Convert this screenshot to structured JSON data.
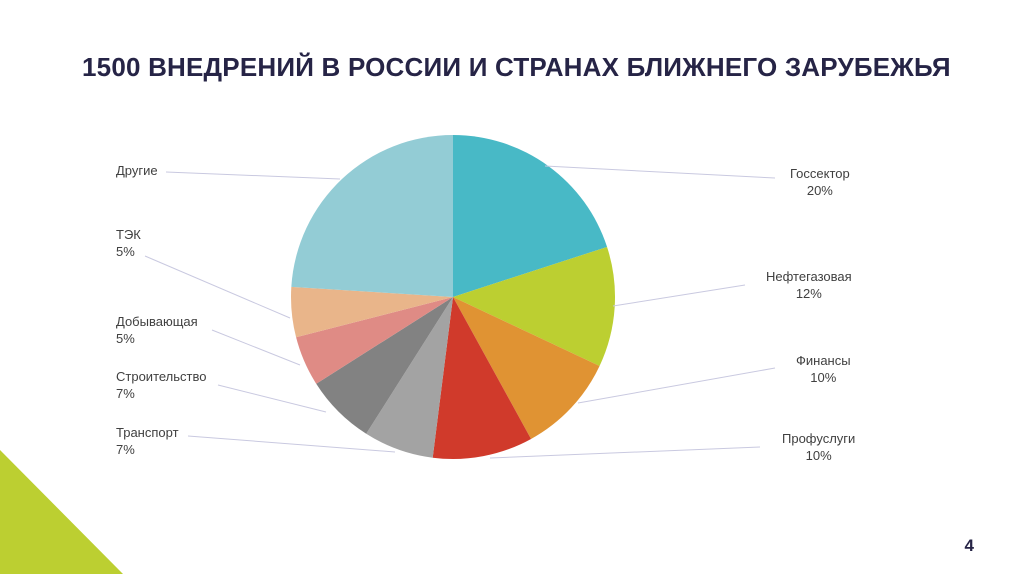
{
  "slide": {
    "title": "1500 ВНЕДРЕНИЙ В РОССИИ И СТРАНАХ БЛИЖНЕГО ЗАРУБЕЖЬЯ",
    "page_number": "4",
    "accent_color": "#bccf31"
  },
  "chart_data": {
    "type": "pie",
    "title": "1500 ВНЕДРЕНИЙ В РОССИИ И СТРАНАХ БЛИЖНЕГО ЗАРУБЕЖЬЯ",
    "start": "top",
    "direction": "clockwise",
    "slices": [
      {
        "name": "Госсектор",
        "value": 20,
        "label": "20%",
        "color": "#48b9c6"
      },
      {
        "name": "Нефтегазовая",
        "value": 12,
        "label": "12%",
        "color": "#bccf31"
      },
      {
        "name": "Финансы",
        "value": 10,
        "label": "10%",
        "color": "#e09333"
      },
      {
        "name": "Профуслуги",
        "value": 10,
        "label": "10%",
        "color": "#d03a2b"
      },
      {
        "name": "Транспорт",
        "value": 7,
        "label": "7%",
        "color": "#a3a3a3"
      },
      {
        "name": "Строительство",
        "value": 7,
        "label": "7%",
        "color": "#828282"
      },
      {
        "name": "Добывающая",
        "value": 5,
        "label": "5%",
        "color": "#df8b85"
      },
      {
        "name": "ТЭК",
        "value": 5,
        "label": "5%",
        "color": "#e9b58a"
      },
      {
        "name": "Другие",
        "value": 24,
        "label": "",
        "color": "#93ccd5"
      }
    ]
  }
}
